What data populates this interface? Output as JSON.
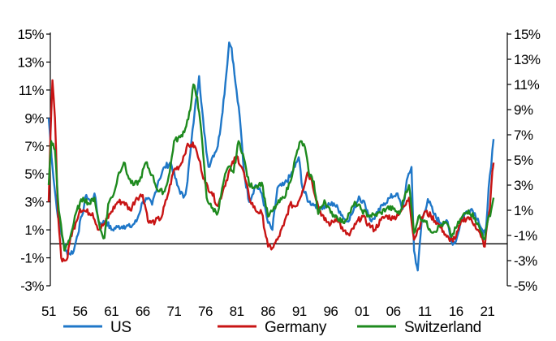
{
  "chart_data": {
    "type": "line",
    "title": "",
    "xlabel": "",
    "ylabel": "",
    "x_range": [
      1951,
      2022.5
    ],
    "x_tick_labels": [
      "51",
      "56",
      "61",
      "66",
      "71",
      "76",
      "81",
      "86",
      "91",
      "96",
      "01",
      "06",
      "11",
      "16",
      "21"
    ],
    "x_tick_years": [
      1951,
      1956,
      1961,
      1966,
      1971,
      1976,
      1981,
      1986,
      1991,
      1996,
      2001,
      2006,
      2011,
      2016,
      2021
    ],
    "left_axis": {
      "ylim": [
        -3,
        15
      ],
      "tick_labels": [
        "15%",
        "13%",
        "11%",
        "9%",
        "7%",
        "5%",
        "3%",
        "1%",
        "-1%",
        "-3%"
      ],
      "tick_values": [
        15,
        13,
        11,
        9,
        7,
        5,
        3,
        1,
        -1,
        -3
      ]
    },
    "right_axis": {
      "ylim": [
        -5,
        15
      ],
      "tick_labels": [
        "15%",
        "13%",
        "11%",
        "9%",
        "7%",
        "5%",
        "3%",
        "1%",
        "-1%",
        "-3%",
        "-5%"
      ],
      "tick_values": [
        15,
        13,
        11,
        9,
        7,
        5,
        3,
        1,
        -1,
        -3,
        -5
      ]
    },
    "zero_line": 0,
    "series": [
      {
        "name": "US",
        "axis": "left",
        "color": "#1f77c8",
        "x": [
          1951,
          1951.6,
          1952.3,
          1953,
          1953.7,
          1954.3,
          1955,
          1955.5,
          1956.3,
          1957,
          1957.7,
          1958.3,
          1959,
          1959.6,
          1960.2,
          1961,
          1962,
          1963,
          1964,
          1965,
          1966,
          1966.7,
          1967.5,
          1968.5,
          1969.5,
          1970.5,
          1971.5,
          1972.5,
          1973,
          1973.6,
          1974.3,
          1975,
          1975.8,
          1976.5,
          1977.2,
          1978,
          1978.6,
          1979.2,
          1979.8,
          1980.2,
          1980.8,
          1981.5,
          1982.2,
          1983,
          1984,
          1985,
          1986,
          1986.7,
          1987.5,
          1988.5,
          1989.5,
          1990.3,
          1990.9,
          1991.5,
          1992.5,
          1993.5,
          1994.5,
          1995.5,
          1996.5,
          1997.5,
          1998.5,
          1999.5,
          2000.5,
          2001.5,
          2002.5,
          2003.5,
          2004.5,
          2005.5,
          2006.5,
          2007.5,
          2008.3,
          2008.9,
          2009.3,
          2009.9,
          2010.5,
          2011.5,
          2012.5,
          2013.5,
          2014.5,
          2015.3,
          2016,
          2016.7,
          2017.5,
          2018.5,
          2019.5,
          2020.3,
          2020.8,
          2021.2,
          2021.6,
          2022
        ],
        "values": [
          9.0,
          5.5,
          2.5,
          0.8,
          -0.5,
          -0.7,
          -0.5,
          0.5,
          2.0,
          3.5,
          3.0,
          3.6,
          1.5,
          1.5,
          1.6,
          1.0,
          1.2,
          1.3,
          1.2,
          1.6,
          3.0,
          3.2,
          2.8,
          4.5,
          5.5,
          5.8,
          4.2,
          3.3,
          4.0,
          6.5,
          9.5,
          12.0,
          8.0,
          5.5,
          6.3,
          7.0,
          9.0,
          11.5,
          14.4,
          14.0,
          11.5,
          9.0,
          5.0,
          3.0,
          4.2,
          3.6,
          1.5,
          1.0,
          4.0,
          4.2,
          4.8,
          5.5,
          6.2,
          4.0,
          3.0,
          2.8,
          2.6,
          2.7,
          2.9,
          2.3,
          1.6,
          2.2,
          3.4,
          2.8,
          1.6,
          2.2,
          2.9,
          3.3,
          3.6,
          2.5,
          4.8,
          5.5,
          -0.5,
          -1.9,
          1.5,
          3.2,
          2.1,
          1.5,
          1.7,
          0.1,
          0.2,
          1.5,
          2.2,
          2.5,
          1.8,
          0.6,
          1.2,
          4.0,
          5.5,
          7.5
        ]
      },
      {
        "name": "Germany",
        "axis": "left",
        "color": "#c81414",
        "x": [
          1951,
          1951.3,
          1951.6,
          1952,
          1952.5,
          1953,
          1953.5,
          1954,
          1954.5,
          1955.3,
          1956,
          1957,
          1958,
          1959,
          1960,
          1961,
          1962,
          1963,
          1964,
          1965,
          1966,
          1967,
          1968,
          1969,
          1970,
          1971,
          1972,
          1973,
          1973.7,
          1974.3,
          1975,
          1976,
          1977,
          1978,
          1979,
          1980,
          1981,
          1982,
          1983,
          1984,
          1985,
          1986,
          1986.7,
          1987.5,
          1988.5,
          1989.5,
          1990.5,
          1991.5,
          1992.3,
          1993,
          1994,
          1995,
          1996,
          1997,
          1998,
          1999,
          2000,
          2001,
          2002,
          2003,
          2004,
          2005,
          2006,
          2007,
          2008,
          2008.5,
          2009.3,
          2010,
          2011,
          2012,
          2013,
          2014,
          2015,
          2016,
          2017,
          2018,
          2019,
          2020,
          2020.6,
          2021,
          2021.4,
          2021.8,
          2022
        ],
        "values": [
          3.0,
          8.0,
          11.7,
          9.0,
          2.0,
          -1.0,
          -1.2,
          -1.0,
          0.5,
          1.5,
          2.5,
          2.3,
          2.2,
          1.0,
          1.5,
          2.3,
          3.0,
          3.0,
          2.4,
          3.3,
          3.5,
          1.5,
          1.6,
          1.9,
          3.5,
          5.3,
          5.6,
          6.9,
          7.1,
          7.0,
          6.0,
          4.3,
          3.7,
          2.7,
          4.1,
          5.4,
          6.3,
          5.3,
          3.3,
          2.4,
          2.2,
          -0.2,
          -0.3,
          0.3,
          1.3,
          2.8,
          2.7,
          3.8,
          5.1,
          4.5,
          2.7,
          1.7,
          1.4,
          1.9,
          0.9,
          0.6,
          1.4,
          2.0,
          1.4,
          1.0,
          1.7,
          2.0,
          1.8,
          2.3,
          2.8,
          3.3,
          0.3,
          1.1,
          2.3,
          2.0,
          1.5,
          0.9,
          0.2,
          0.5,
          1.7,
          1.9,
          1.4,
          0.5,
          -0.2,
          1.5,
          2.5,
          5.2,
          5.8
        ]
      },
      {
        "name": "Switzerland",
        "axis": "right",
        "color": "#1e8a1e",
        "x": [
          1951,
          1951.4,
          1952,
          1952.6,
          1953.5,
          1954.5,
          1955.5,
          1956.5,
          1957.5,
          1958.3,
          1959.2,
          1959.9,
          1960.5,
          1961.5,
          1962.2,
          1963,
          1963.8,
          1964.5,
          1965.5,
          1966.5,
          1967.5,
          1968.5,
          1969.5,
          1970.3,
          1971,
          1972,
          1972.8,
          1973.6,
          1974.1,
          1974.7,
          1975.5,
          1976.2,
          1977,
          1978,
          1979,
          1979.8,
          1980.5,
          1981.3,
          1982,
          1983,
          1984,
          1985,
          1986,
          1986.8,
          1987.5,
          1988.5,
          1989.5,
          1990.5,
          1991.2,
          1991.9,
          1992.5,
          1993.3,
          1994,
          1995,
          1996,
          1997,
          1998,
          1999,
          2000,
          2001,
          2002,
          2003,
          2004,
          2005,
          2006,
          2007,
          2008,
          2008.5,
          2009.3,
          2010,
          2011,
          2011.8,
          2012.5,
          2013.5,
          2014.5,
          2015.3,
          2016,
          2017,
          2018,
          2019,
          2020,
          2020.6,
          2021,
          2021.6,
          2022
        ],
        "values": [
          3.0,
          6.5,
          5.8,
          1.0,
          -2.2,
          -1.0,
          1.0,
          2.0,
          1.5,
          2.0,
          -0.5,
          -1.2,
          1.5,
          2.5,
          4.0,
          4.8,
          3.5,
          3.0,
          3.3,
          4.8,
          3.8,
          2.5,
          2.5,
          4.0,
          6.5,
          6.8,
          7.5,
          9.0,
          11.0,
          10.0,
          6.5,
          2.0,
          1.2,
          0.8,
          3.5,
          4.5,
          4.0,
          6.5,
          5.5,
          3.0,
          2.9,
          3.2,
          0.5,
          1.0,
          1.5,
          2.0,
          3.2,
          5.4,
          6.5,
          6.0,
          4.0,
          3.3,
          0.7,
          1.8,
          0.8,
          0.5,
          0.0,
          0.8,
          1.6,
          1.0,
          0.6,
          0.6,
          0.8,
          1.2,
          1.1,
          0.7,
          2.5,
          3.0,
          -0.8,
          0.5,
          0.2,
          -0.5,
          -0.7,
          -0.2,
          0.0,
          -1.1,
          -0.4,
          0.5,
          1.0,
          0.4,
          -0.7,
          -1.3,
          0.0,
          1.0,
          2.0
        ]
      }
    ],
    "legend": {
      "position": "bottom",
      "entries": [
        "US",
        "Germany",
        "Switzerland"
      ]
    }
  }
}
